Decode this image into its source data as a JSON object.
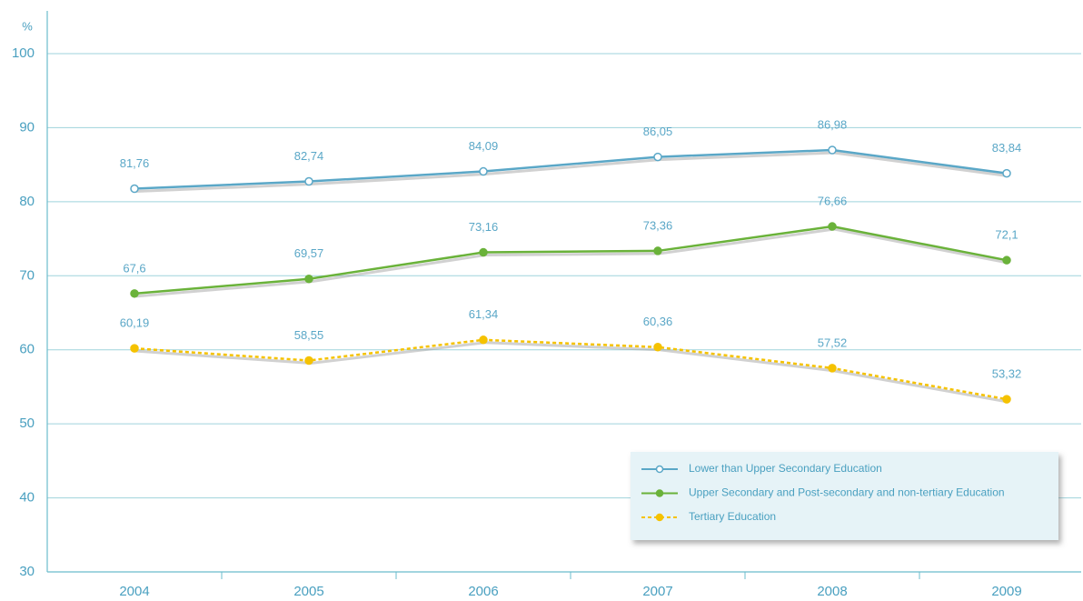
{
  "chart_data": {
    "type": "line",
    "y_label": "%",
    "categories": [
      "2004",
      "2005",
      "2006",
      "2007",
      "2008",
      "2009"
    ],
    "series": [
      {
        "name": "Lower than Upper Secondary Education",
        "color": "#5aa7c7",
        "linestyle": "solid",
        "marker": "open",
        "values": [
          81.76,
          82.74,
          84.09,
          86.05,
          86.98,
          83.84
        ],
        "value_labels": [
          "81,76",
          "82,74",
          "84,09",
          "86,05",
          "86,98",
          "83,84"
        ]
      },
      {
        "name": "Upper Secondary and Post-secondary and non-tertiary Education",
        "color": "#6ab23a",
        "linestyle": "solid",
        "marker": "filled",
        "values": [
          67.6,
          69.57,
          73.16,
          73.36,
          76.66,
          72.1
        ],
        "value_labels": [
          "67,6",
          "69,57",
          "73,16",
          "73,36",
          "76,66",
          "72,1"
        ]
      },
      {
        "name": "Tertiary Education",
        "color": "#f5c200",
        "linestyle": "dashed",
        "marker": "filled",
        "values": [
          60.19,
          58.55,
          61.34,
          60.36,
          57.52,
          53.32
        ],
        "value_labels": [
          "60,19",
          "58,55",
          "61,34",
          "60,36",
          "57,52",
          "53,32"
        ]
      }
    ],
    "ylim": [
      30,
      100
    ],
    "yticks": [
      30,
      40,
      50,
      60,
      70,
      80,
      90,
      100
    ],
    "grid": true,
    "legend": "lower right"
  }
}
